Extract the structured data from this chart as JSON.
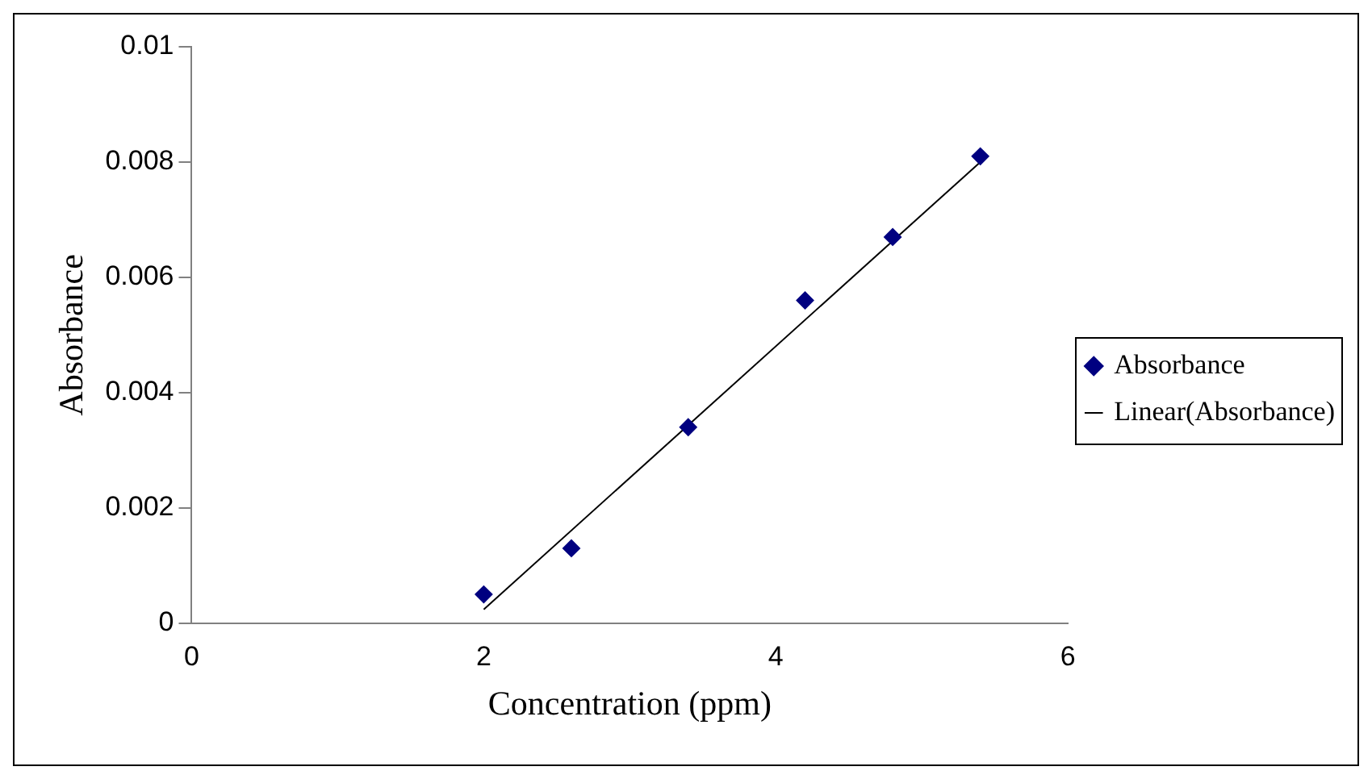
{
  "chart_data": {
    "type": "scatter",
    "xlabel": "Concentration (ppm)",
    "ylabel": "Absorbance",
    "xlim": [
      0,
      6
    ],
    "xticks": [
      0,
      2,
      4,
      6
    ],
    "ylim": [
      0,
      0.01
    ],
    "yticks": [
      0,
      0.002,
      0.004,
      0.006,
      0.008,
      0.01
    ],
    "grid": false,
    "legend": "right",
    "marker": "diamond",
    "x": [
      2,
      2.6,
      3.4,
      4.2,
      4.8,
      5.4
    ],
    "series": [
      {
        "name": "Absorbance",
        "color": "#000080",
        "values": [
          0.0005,
          0.0013,
          0.0034,
          0.0056,
          0.0067,
          0.0081
        ]
      },
      {
        "name": "Linear(Absorbance)",
        "type": "line",
        "color": "#000000",
        "x": [
          2,
          5.4
        ],
        "values": [
          0.00024,
          0.008
        ],
        "marker": "none",
        "line_style": "solid"
      }
    ]
  }
}
